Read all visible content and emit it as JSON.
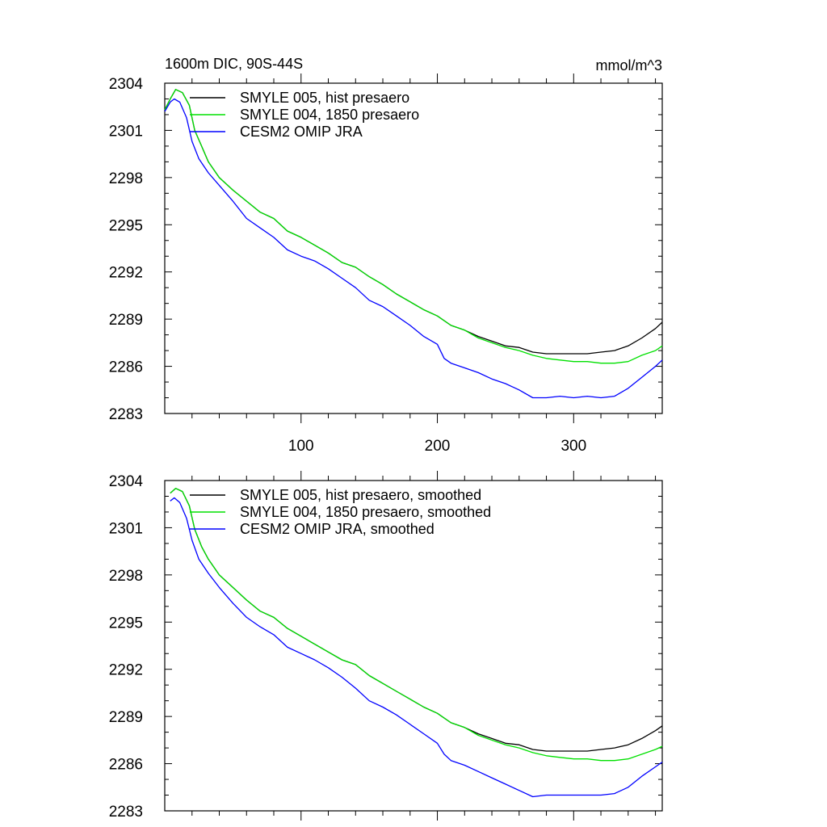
{
  "figure": {
    "title": "1600m DIC, 90S-44S",
    "units": "mmol/m^3"
  },
  "chart_data": [
    {
      "type": "line",
      "title": "1600m DIC, 90S-44S",
      "units_label": "mmol/m^3",
      "xlabel": "",
      "ylabel": "",
      "xlim": [
        0,
        365
      ],
      "ylim": [
        2283,
        2304
      ],
      "yticks": [
        2283,
        2286,
        2289,
        2292,
        2295,
        2298,
        2301,
        2304
      ],
      "xticks": [
        100,
        200,
        300
      ],
      "legend_position": "top-left",
      "series": [
        {
          "name": "SMYLE 005, hist presaero",
          "color": "#000000",
          "points": [
            [
              0,
              2302.3
            ],
            [
              4,
              2303.0
            ],
            [
              8,
              2303.6
            ],
            [
              13,
              2303.4
            ],
            [
              18,
              2302.6
            ],
            [
              22,
              2301.0
            ],
            [
              27,
              2300.0
            ],
            [
              32,
              2299.0
            ],
            [
              40,
              2298.0
            ],
            [
              50,
              2297.2
            ],
            [
              60,
              2296.5
            ],
            [
              70,
              2295.8
            ],
            [
              80,
              2295.4
            ],
            [
              90,
              2294.6
            ],
            [
              100,
              2294.2
            ],
            [
              110,
              2293.7
            ],
            [
              120,
              2293.2
            ],
            [
              130,
              2292.6
            ],
            [
              140,
              2292.3
            ],
            [
              150,
              2291.7
            ],
            [
              160,
              2291.2
            ],
            [
              170,
              2290.6
            ],
            [
              180,
              2290.1
            ],
            [
              190,
              2289.6
            ],
            [
              200,
              2289.2
            ],
            [
              210,
              2288.6
            ],
            [
              220,
              2288.3
            ],
            [
              230,
              2287.9
            ],
            [
              240,
              2287.6
            ],
            [
              250,
              2287.3
            ],
            [
              260,
              2287.2
            ],
            [
              270,
              2286.9
            ],
            [
              280,
              2286.8
            ],
            [
              290,
              2286.8
            ],
            [
              300,
              2286.8
            ],
            [
              310,
              2286.8
            ],
            [
              320,
              2286.9
            ],
            [
              330,
              2287.0
            ],
            [
              340,
              2287.3
            ],
            [
              350,
              2287.8
            ],
            [
              360,
              2288.4
            ],
            [
              365,
              2288.8
            ]
          ]
        },
        {
          "name": "SMYLE 004, 1850 presaero",
          "color": "#00e000",
          "points": [
            [
              0,
              2302.3
            ],
            [
              4,
              2303.0
            ],
            [
              8,
              2303.6
            ],
            [
              13,
              2303.4
            ],
            [
              18,
              2302.6
            ],
            [
              22,
              2301.0
            ],
            [
              27,
              2300.0
            ],
            [
              32,
              2299.0
            ],
            [
              40,
              2298.0
            ],
            [
              50,
              2297.2
            ],
            [
              60,
              2296.5
            ],
            [
              70,
              2295.8
            ],
            [
              80,
              2295.4
            ],
            [
              90,
              2294.6
            ],
            [
              100,
              2294.2
            ],
            [
              110,
              2293.7
            ],
            [
              120,
              2293.2
            ],
            [
              130,
              2292.6
            ],
            [
              140,
              2292.3
            ],
            [
              150,
              2291.7
            ],
            [
              160,
              2291.2
            ],
            [
              170,
              2290.6
            ],
            [
              180,
              2290.1
            ],
            [
              190,
              2289.6
            ],
            [
              200,
              2289.2
            ],
            [
              210,
              2288.6
            ],
            [
              220,
              2288.3
            ],
            [
              230,
              2287.8
            ],
            [
              240,
              2287.5
            ],
            [
              250,
              2287.2
            ],
            [
              260,
              2287.0
            ],
            [
              270,
              2286.7
            ],
            [
              280,
              2286.5
            ],
            [
              290,
              2286.4
            ],
            [
              300,
              2286.3
            ],
            [
              310,
              2286.3
            ],
            [
              320,
              2286.2
            ],
            [
              330,
              2286.2
            ],
            [
              340,
              2286.3
            ],
            [
              350,
              2286.7
            ],
            [
              360,
              2287.0
            ],
            [
              365,
              2287.3
            ]
          ]
        },
        {
          "name": "CESM2 OMIP JRA",
          "color": "#0000ff",
          "points": [
            [
              0,
              2302.2
            ],
            [
              4,
              2302.8
            ],
            [
              7,
              2303.0
            ],
            [
              11,
              2302.8
            ],
            [
              16,
              2301.8
            ],
            [
              20,
              2300.3
            ],
            [
              25,
              2299.2
            ],
            [
              32,
              2298.3
            ],
            [
              40,
              2297.5
            ],
            [
              50,
              2296.5
            ],
            [
              60,
              2295.4
            ],
            [
              70,
              2294.8
            ],
            [
              80,
              2294.2
            ],
            [
              90,
              2293.4
            ],
            [
              100,
              2293.0
            ],
            [
              110,
              2292.7
            ],
            [
              120,
              2292.2
            ],
            [
              130,
              2291.6
            ],
            [
              140,
              2291.0
            ],
            [
              150,
              2290.2
            ],
            [
              160,
              2289.8
            ],
            [
              170,
              2289.2
            ],
            [
              180,
              2288.6
            ],
            [
              190,
              2287.9
            ],
            [
              200,
              2287.4
            ],
            [
              205,
              2286.5
            ],
            [
              210,
              2286.2
            ],
            [
              220,
              2285.9
            ],
            [
              230,
              2285.6
            ],
            [
              240,
              2285.2
            ],
            [
              250,
              2284.9
            ],
            [
              260,
              2284.5
            ],
            [
              270,
              2284.0
            ],
            [
              280,
              2284.0
            ],
            [
              290,
              2284.1
            ],
            [
              300,
              2284.0
            ],
            [
              310,
              2284.1
            ],
            [
              320,
              2284.0
            ],
            [
              330,
              2284.1
            ],
            [
              340,
              2284.6
            ],
            [
              350,
              2285.3
            ],
            [
              360,
              2286.0
            ],
            [
              365,
              2286.4
            ]
          ]
        }
      ]
    },
    {
      "type": "line",
      "title": "",
      "xlabel": "",
      "ylabel": "",
      "xlim": [
        0,
        365
      ],
      "ylim": [
        2283,
        2304
      ],
      "yticks": [
        2283,
        2286,
        2289,
        2292,
        2295,
        2298,
        2301,
        2304
      ],
      "xticks": [
        100,
        200,
        300
      ],
      "legend_position": "top-left",
      "series": [
        {
          "name": "SMYLE 005, hist presaero, smoothed",
          "color": "#000000",
          "points": [
            [
              4,
              2303.2
            ],
            [
              8,
              2303.5
            ],
            [
              13,
              2303.3
            ],
            [
              18,
              2302.4
            ],
            [
              22,
              2300.9
            ],
            [
              27,
              2299.8
            ],
            [
              32,
              2299.0
            ],
            [
              40,
              2298.0
            ],
            [
              50,
              2297.2
            ],
            [
              60,
              2296.4
            ],
            [
              70,
              2295.7
            ],
            [
              80,
              2295.3
            ],
            [
              90,
              2294.6
            ],
            [
              100,
              2294.1
            ],
            [
              110,
              2293.6
            ],
            [
              120,
              2293.1
            ],
            [
              130,
              2292.6
            ],
            [
              140,
              2292.3
            ],
            [
              150,
              2291.6
            ],
            [
              160,
              2291.1
            ],
            [
              170,
              2290.6
            ],
            [
              180,
              2290.1
            ],
            [
              190,
              2289.6
            ],
            [
              200,
              2289.2
            ],
            [
              210,
              2288.6
            ],
            [
              220,
              2288.3
            ],
            [
              230,
              2287.9
            ],
            [
              240,
              2287.6
            ],
            [
              250,
              2287.3
            ],
            [
              260,
              2287.2
            ],
            [
              270,
              2286.9
            ],
            [
              280,
              2286.8
            ],
            [
              290,
              2286.8
            ],
            [
              300,
              2286.8
            ],
            [
              310,
              2286.8
            ],
            [
              320,
              2286.9
            ],
            [
              330,
              2287.0
            ],
            [
              340,
              2287.2
            ],
            [
              350,
              2287.6
            ],
            [
              360,
              2288.1
            ],
            [
              365,
              2288.4
            ]
          ]
        },
        {
          "name": "SMYLE 004, 1850 presaero, smoothed",
          "color": "#00e000",
          "points": [
            [
              4,
              2303.2
            ],
            [
              8,
              2303.5
            ],
            [
              13,
              2303.3
            ],
            [
              18,
              2302.4
            ],
            [
              22,
              2300.9
            ],
            [
              27,
              2299.8
            ],
            [
              32,
              2299.0
            ],
            [
              40,
              2298.0
            ],
            [
              50,
              2297.2
            ],
            [
              60,
              2296.4
            ],
            [
              70,
              2295.7
            ],
            [
              80,
              2295.3
            ],
            [
              90,
              2294.6
            ],
            [
              100,
              2294.1
            ],
            [
              110,
              2293.6
            ],
            [
              120,
              2293.1
            ],
            [
              130,
              2292.6
            ],
            [
              140,
              2292.3
            ],
            [
              150,
              2291.6
            ],
            [
              160,
              2291.1
            ],
            [
              170,
              2290.6
            ],
            [
              180,
              2290.1
            ],
            [
              190,
              2289.6
            ],
            [
              200,
              2289.2
            ],
            [
              210,
              2288.6
            ],
            [
              220,
              2288.3
            ],
            [
              230,
              2287.8
            ],
            [
              240,
              2287.5
            ],
            [
              250,
              2287.2
            ],
            [
              260,
              2287.0
            ],
            [
              270,
              2286.7
            ],
            [
              280,
              2286.5
            ],
            [
              290,
              2286.4
            ],
            [
              300,
              2286.3
            ],
            [
              310,
              2286.3
            ],
            [
              320,
              2286.2
            ],
            [
              330,
              2286.2
            ],
            [
              340,
              2286.3
            ],
            [
              350,
              2286.6
            ],
            [
              360,
              2286.9
            ],
            [
              365,
              2287.1
            ]
          ]
        },
        {
          "name": "CESM2 OMIP JRA, smoothed",
          "color": "#0000ff",
          "points": [
            [
              4,
              2302.7
            ],
            [
              7,
              2302.9
            ],
            [
              11,
              2302.6
            ],
            [
              16,
              2301.6
            ],
            [
              20,
              2300.2
            ],
            [
              25,
              2299.0
            ],
            [
              32,
              2298.1
            ],
            [
              40,
              2297.2
            ],
            [
              50,
              2296.2
            ],
            [
              60,
              2295.3
            ],
            [
              70,
              2294.7
            ],
            [
              80,
              2294.2
            ],
            [
              90,
              2293.4
            ],
            [
              100,
              2293.0
            ],
            [
              110,
              2292.6
            ],
            [
              120,
              2292.1
            ],
            [
              130,
              2291.5
            ],
            [
              140,
              2290.8
            ],
            [
              150,
              2290.0
            ],
            [
              160,
              2289.6
            ],
            [
              170,
              2289.1
            ],
            [
              180,
              2288.5
            ],
            [
              190,
              2287.9
            ],
            [
              200,
              2287.3
            ],
            [
              205,
              2286.6
            ],
            [
              210,
              2286.2
            ],
            [
              220,
              2285.9
            ],
            [
              230,
              2285.5
            ],
            [
              240,
              2285.1
            ],
            [
              250,
              2284.7
            ],
            [
              260,
              2284.3
            ],
            [
              270,
              2283.9
            ],
            [
              280,
              2284.0
            ],
            [
              290,
              2284.0
            ],
            [
              300,
              2284.0
            ],
            [
              310,
              2284.0
            ],
            [
              320,
              2284.0
            ],
            [
              330,
              2284.1
            ],
            [
              340,
              2284.5
            ],
            [
              350,
              2285.2
            ],
            [
              360,
              2285.8
            ],
            [
              365,
              2286.1
            ]
          ]
        }
      ]
    }
  ]
}
